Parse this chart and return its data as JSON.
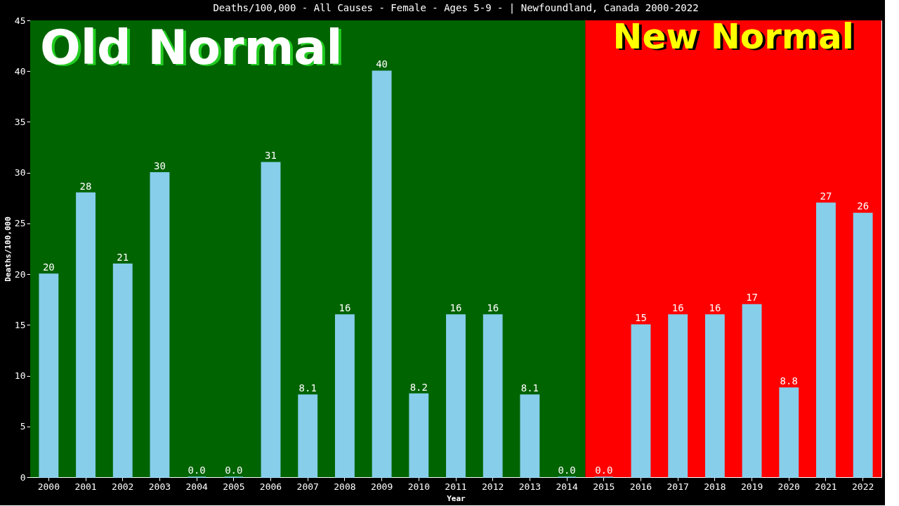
{
  "chart_data": {
    "type": "bar",
    "title": "Deaths/100,000 - All Causes - Female - Ages 5-9 -  | Newfoundland, Canada 2000-2022",
    "xlabel": "Year",
    "ylabel": "Deaths/100,000",
    "categories": [
      "2000",
      "2001",
      "2002",
      "2003",
      "2004",
      "2005",
      "2006",
      "2007",
      "2008",
      "2009",
      "2010",
      "2011",
      "2012",
      "2013",
      "2014",
      "2015",
      "2016",
      "2017",
      "2018",
      "2019",
      "2020",
      "2021",
      "2022"
    ],
    "values": [
      20,
      28,
      21,
      30,
      0,
      0,
      31,
      8.1,
      16,
      40,
      8.2,
      16,
      16,
      8.1,
      0,
      0,
      15,
      16,
      16,
      17,
      8.8,
      27,
      26
    ],
    "value_labels": [
      "20",
      "28",
      "21",
      "30",
      "0.0",
      "0.0",
      "31",
      "8.1",
      "16",
      "40",
      "8.2",
      "16",
      "16",
      "8.1",
      "0.0",
      "0.0",
      "15",
      "16",
      "16",
      "17",
      "8.8",
      "27",
      "26"
    ],
    "color": "#87ceeb",
    "ylim": [
      0,
      45
    ],
    "yticks": [
      0,
      5,
      10,
      15,
      20,
      25,
      30,
      35,
      40,
      45
    ],
    "grid": false,
    "bands": [
      {
        "axis": "x",
        "from": "2000",
        "to": "2014",
        "label": "Old Normal",
        "color": "#006400"
      },
      {
        "axis": "x",
        "from": "2015",
        "to": "2022",
        "label": "New Normal",
        "color": "#ff0000"
      }
    ]
  }
}
